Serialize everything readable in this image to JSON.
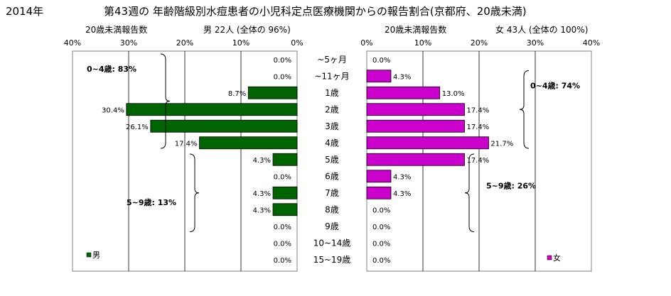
{
  "header": {
    "year": "2014年",
    "title": "第43週の 年齢階級別水痘患者の小児科定点医療機関からの報告割合(京都府、20歳未満)"
  },
  "colors": {
    "male": "#006400",
    "female": "#CC00CC",
    "grid": "#000000",
    "border": "#808080"
  },
  "chart_data": [
    {
      "type": "bar",
      "orientation": "horizontal",
      "direction": "right-to-left",
      "title": "男  22人  (全体の  96%)",
      "xlabel": "20歳未満報告数",
      "xlim": [
        0,
        40
      ],
      "x_ticks": [
        "40%",
        "30%",
        "20%",
        "10%",
        "0%"
      ],
      "categories": [
        "~5ヶ月",
        "~11ヶ月",
        "1歳",
        "2歳",
        "3歳",
        "4歳",
        "5歳",
        "6歳",
        "7歳",
        "8歳",
        "9歳",
        "10~14歳",
        "15~19歳"
      ],
      "series": [
        {
          "name": "男",
          "values": [
            0.0,
            0.0,
            8.7,
            30.4,
            26.1,
            17.4,
            4.3,
            0.0,
            4.3,
            4.3,
            0.0,
            0.0,
            0.0
          ],
          "labels": [
            "0.0%",
            "0.0%",
            "8.7%",
            "30.4%",
            "26.1%",
            "17.4%",
            "4.3%",
            "0.0%",
            "4.3%",
            "4.3%",
            "0.0%",
            "0.0%",
            "0.0%"
          ]
        }
      ],
      "annotations": [
        {
          "text": "0~4歳: 83%",
          "from_category": "~5ヶ月",
          "to_category": "4歳"
        },
        {
          "text": "5~9歳: 13%",
          "from_category": "5歳",
          "to_category": "9歳"
        }
      ],
      "grid": true,
      "legend_position": "bottom-left"
    },
    {
      "type": "bar",
      "orientation": "horizontal",
      "direction": "left-to-right",
      "title": "女  43人  (全体の  100%)",
      "xlabel": "20歳未満報告数",
      "xlim": [
        0,
        40
      ],
      "x_ticks": [
        "0%",
        "10%",
        "20%",
        "30%",
        "40%"
      ],
      "categories": [
        "~5ヶ月",
        "~11ヶ月",
        "1歳",
        "2歳",
        "3歳",
        "4歳",
        "5歳",
        "6歳",
        "7歳",
        "8歳",
        "9歳",
        "10~14歳",
        "15~19歳"
      ],
      "series": [
        {
          "name": "女",
          "values": [
            0.0,
            4.3,
            13.0,
            17.4,
            17.4,
            21.7,
            17.4,
            4.3,
            4.3,
            0.0,
            0.0,
            0.0,
            0.0
          ],
          "labels": [
            "0.0%",
            "4.3%",
            "13.0%",
            "17.4%",
            "17.4%",
            "21.7%",
            "17.4%",
            "4.3%",
            "4.3%",
            "0.0%",
            "0.0%",
            "0.0%",
            "0.0%"
          ]
        }
      ],
      "annotations": [
        {
          "text": "0~4歳: 74%",
          "from_category": "~11ヶ月",
          "to_category": "4歳"
        },
        {
          "text": "5~9歳: 26%",
          "from_category": "5歳",
          "to_category": "9歳"
        }
      ],
      "grid": true,
      "legend_position": "bottom-right"
    }
  ]
}
